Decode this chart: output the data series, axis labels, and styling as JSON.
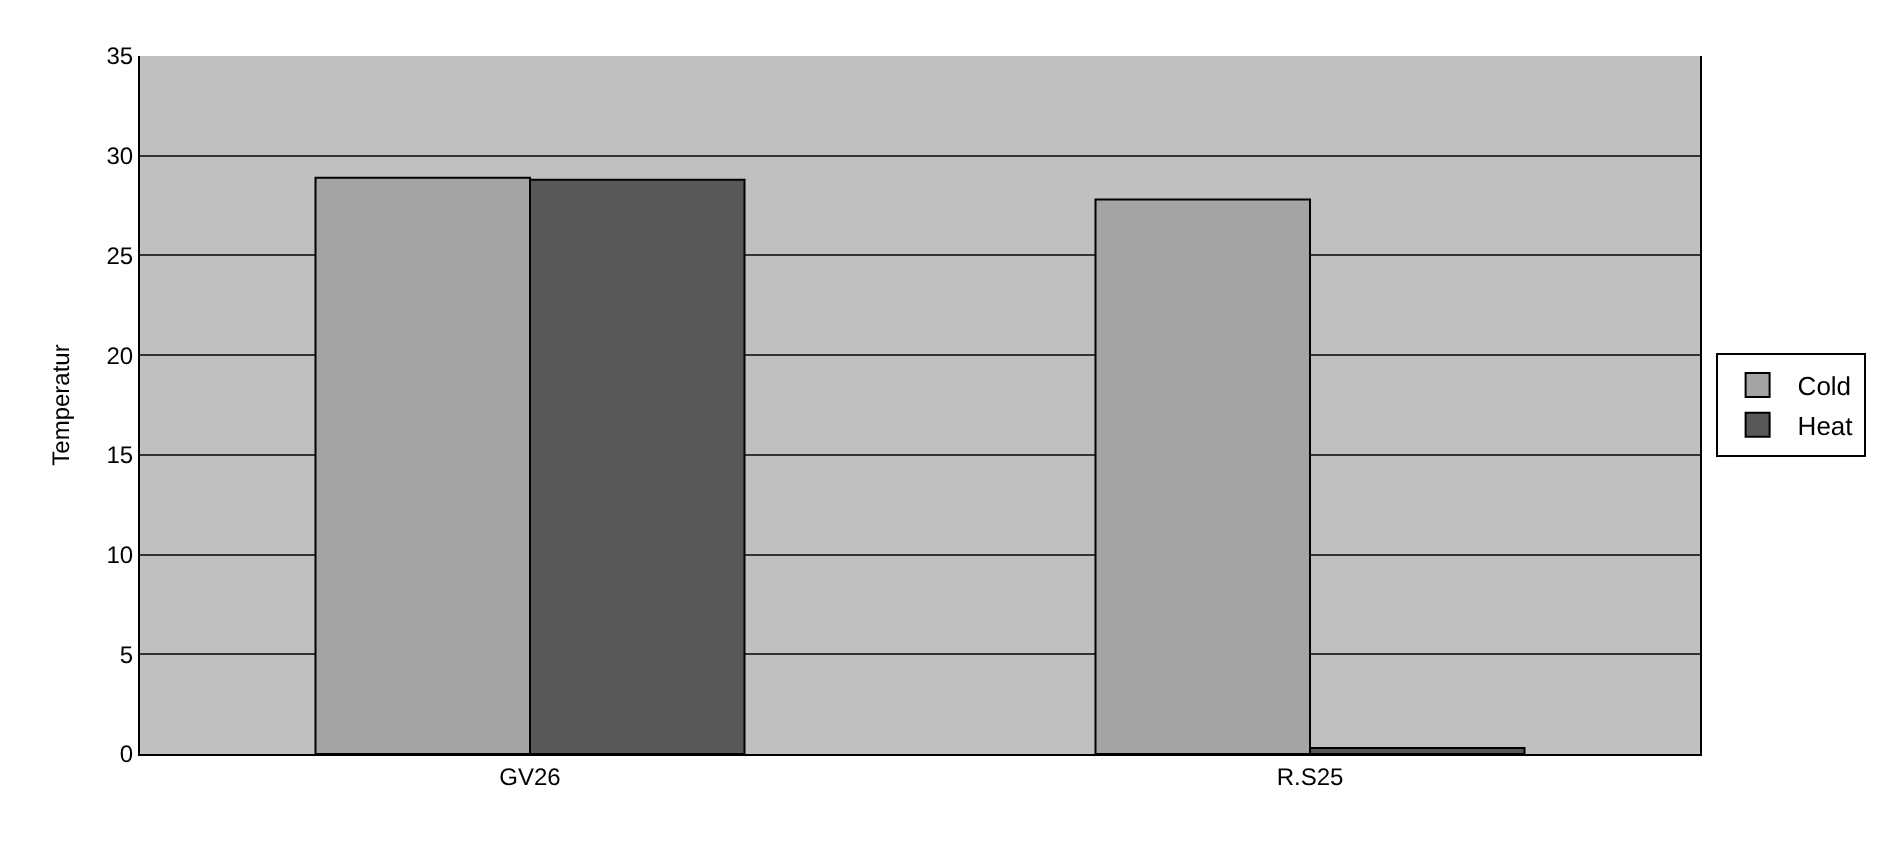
{
  "chart_data": {
    "type": "bar",
    "ylabel": "Temperatur",
    "categories": [
      "GV26",
      "R.S25"
    ],
    "series": [
      {
        "name": "Cold",
        "color": "#a4a4a4",
        "values": [
          28.9,
          27.8
        ]
      },
      {
        "name": "Heat",
        "color": "#585858",
        "values": [
          28.8,
          0.3
        ]
      }
    ],
    "ylim": [
      0,
      35
    ],
    "yticks": [
      0,
      5,
      10,
      15,
      20,
      25,
      30,
      35
    ],
    "grid": "y",
    "legend": "right"
  }
}
